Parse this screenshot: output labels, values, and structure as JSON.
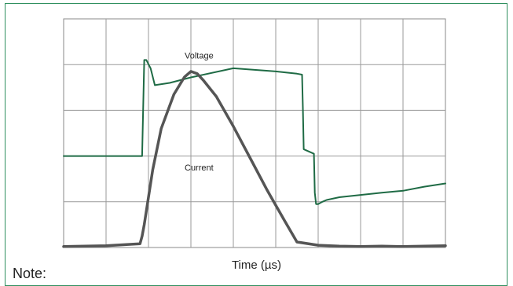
{
  "chart_data": {
    "type": "line",
    "title": "",
    "xlabel": "Time (µs)",
    "ylabel": "",
    "grid": true,
    "xlim": [
      0,
      9
    ],
    "ylim": [
      0,
      5
    ],
    "series": [
      {
        "name": "Voltage",
        "color": "#1f6b45",
        "label_at": [
          3.0,
          4.2
        ],
        "x": [
          0,
          1.8,
          1.85,
          1.9,
          1.95,
          2.05,
          2.15,
          2.5,
          3.0,
          4.0,
          5.0,
          5.5,
          5.62,
          5.64,
          5.66,
          5.9,
          5.92,
          5.95,
          6.0,
          6.1,
          6.2,
          6.5,
          7.0,
          7.5,
          8.0,
          8.5,
          9.0
        ],
        "y": [
          2.0,
          2.0,
          2.0,
          4.1,
          4.1,
          3.92,
          3.55,
          3.6,
          3.72,
          3.92,
          3.85,
          3.8,
          3.78,
          3.0,
          2.15,
          2.05,
          1.2,
          0.95,
          0.95,
          1.0,
          1.04,
          1.1,
          1.15,
          1.2,
          1.24,
          1.33,
          1.4
        ]
      },
      {
        "name": "Current",
        "color": "#555555",
        "label_at": [
          3.0,
          1.75
        ],
        "x": [
          0,
          1.0,
          1.8,
          1.85,
          1.9,
          2.0,
          2.1,
          2.3,
          2.6,
          2.85,
          3.0,
          3.15,
          3.3,
          3.6,
          4.0,
          4.4,
          4.8,
          5.2,
          5.5,
          6.0,
          6.5,
          7.0,
          7.5,
          8.0,
          8.5,
          9.0
        ],
        "y": [
          0.02,
          0.04,
          0.08,
          0.25,
          0.5,
          1.1,
          1.7,
          2.6,
          3.35,
          3.73,
          3.85,
          3.8,
          3.65,
          3.3,
          2.65,
          1.95,
          1.25,
          0.6,
          0.12,
          0.05,
          0.03,
          0.02,
          0.03,
          0.02,
          0.03,
          0.04
        ]
      }
    ]
  },
  "note": "Note:"
}
